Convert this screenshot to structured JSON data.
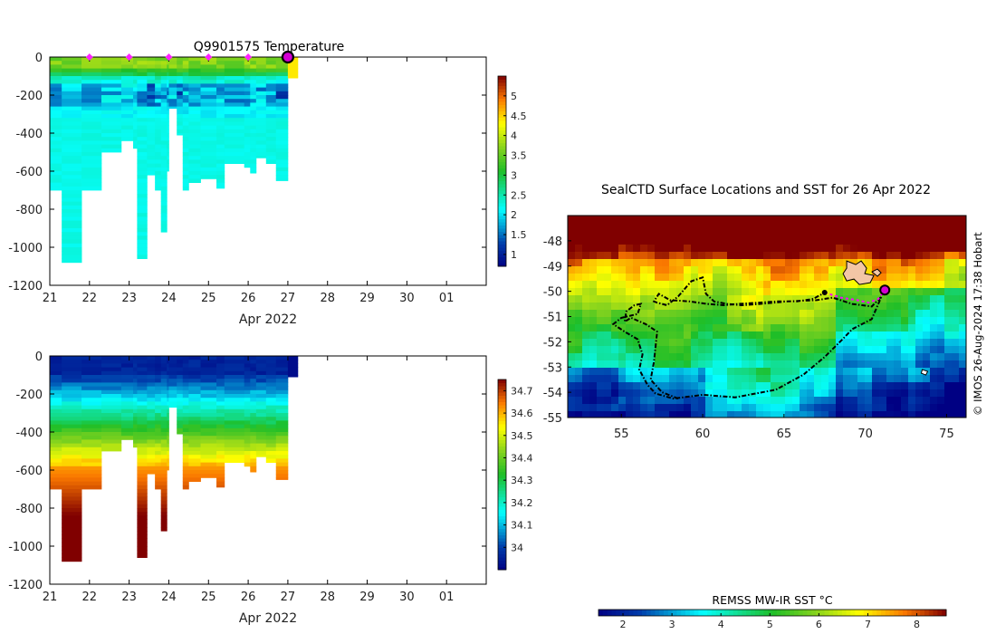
{
  "chart_data": [
    {
      "type": "heatmap",
      "title": "Q9901575  Temperature",
      "xlabel": "Apr 2022",
      "x_tick_labels": [
        "21",
        "22",
        "23",
        "24",
        "25",
        "26",
        "27",
        "28",
        "29",
        "30",
        "01"
      ],
      "xlim": [
        21,
        32
      ],
      "ylim": [
        -1200,
        0
      ],
      "y_tick_labels": [
        "0",
        "-200",
        "-400",
        "-600",
        "-800",
        "-1000",
        "-1200"
      ],
      "colorbar": {
        "min": 0.7,
        "max": 5.5,
        "tick_labels": [
          "1",
          "1.5",
          "2",
          "2.5",
          "3",
          "3.5",
          "4",
          "4.5",
          "5"
        ],
        "tick_values": [
          1,
          1.5,
          2,
          2.5,
          3,
          3.5,
          4,
          4.5,
          5
        ]
      },
      "surfacing_markers_x": [
        22,
        23,
        24,
        25,
        26
      ],
      "current_position_x": 27,
      "profiles": [
        {
          "x_start": 21.0,
          "x_end": 21.3,
          "bottom_depth": 700
        },
        {
          "x_start": 21.3,
          "x_end": 21.8,
          "bottom_depth": 1080
        },
        {
          "x_start": 21.8,
          "x_end": 22.3,
          "bottom_depth": 700
        },
        {
          "x_start": 22.3,
          "x_end": 22.8,
          "bottom_depth": 500
        },
        {
          "x_start": 22.8,
          "x_end": 23.1,
          "bottom_depth": 440
        },
        {
          "x_start": 23.1,
          "x_end": 23.2,
          "bottom_depth": 480
        },
        {
          "x_start": 23.2,
          "x_end": 23.45,
          "bottom_depth": 1060
        },
        {
          "x_start": 23.45,
          "x_end": 23.65,
          "bottom_depth": 620
        },
        {
          "x_start": 23.65,
          "x_end": 23.8,
          "bottom_depth": 700
        },
        {
          "x_start": 23.8,
          "x_end": 23.95,
          "bottom_depth": 920
        },
        {
          "x_start": 23.95,
          "x_end": 24.0,
          "bottom_depth": 600
        },
        {
          "x_start": 24.0,
          "x_end": 24.2,
          "bottom_depth": 270
        },
        {
          "x_start": 24.2,
          "x_end": 24.35,
          "bottom_depth": 410
        },
        {
          "x_start": 24.35,
          "x_end": 24.5,
          "bottom_depth": 700
        },
        {
          "x_start": 24.5,
          "x_end": 24.8,
          "bottom_depth": 660
        },
        {
          "x_start": 24.8,
          "x_end": 25.2,
          "bottom_depth": 640
        },
        {
          "x_start": 25.2,
          "x_end": 25.4,
          "bottom_depth": 690
        },
        {
          "x_start": 25.4,
          "x_end": 25.9,
          "bottom_depth": 560
        },
        {
          "x_start": 25.9,
          "x_end": 26.05,
          "bottom_depth": 580
        },
        {
          "x_start": 26.05,
          "x_end": 26.2,
          "bottom_depth": 610
        },
        {
          "x_start": 26.2,
          "x_end": 26.45,
          "bottom_depth": 530
        },
        {
          "x_start": 26.45,
          "x_end": 26.7,
          "bottom_depth": 560
        },
        {
          "x_start": 26.7,
          "x_end": 27.0,
          "bottom_depth": 650
        },
        {
          "x_start": 27.0,
          "x_end": 27.25,
          "bottom_depth": 110
        }
      ]
    },
    {
      "type": "heatmap",
      "title": "",
      "xlabel": "Apr 2022",
      "x_tick_labels": [
        "21",
        "22",
        "23",
        "24",
        "25",
        "26",
        "27",
        "28",
        "29",
        "30",
        "01"
      ],
      "xlim": [
        21,
        32
      ],
      "ylim": [
        -1200,
        0
      ],
      "y_tick_labels": [
        "0",
        "-200",
        "-400",
        "-600",
        "-800",
        "-1000",
        "-1200"
      ],
      "colorbar": {
        "min": 33.9,
        "max": 34.75,
        "tick_labels": [
          "34",
          "34.1",
          "34.2",
          "34.3",
          "34.4",
          "34.5",
          "34.6",
          "34.7"
        ],
        "tick_values": [
          34,
          34.1,
          34.2,
          34.3,
          34.4,
          34.5,
          34.6,
          34.7
        ]
      }
    },
    {
      "type": "heatmap",
      "title": "SealCTD Surface Locations and SST for 26 Apr 2022",
      "xlabel": "",
      "ylabel": "",
      "x_tick_labels": [
        "55",
        "60",
        "65",
        "70",
        "75"
      ],
      "x_tick_values": [
        55,
        60,
        65,
        70,
        75
      ],
      "xlim": [
        51.7,
        76.2
      ],
      "y_tick_labels": [
        "-48",
        "-49",
        "-50",
        "-51",
        "-52",
        "-53",
        "-54",
        "-55"
      ],
      "y_tick_values": [
        -48,
        -49,
        -50,
        -51,
        -52,
        -53,
        -54,
        -55
      ],
      "ylim": [
        -55,
        -47
      ],
      "colorbar": {
        "label": "REMSS MW-IR SST °C",
        "tick_labels": [
          "2",
          "3",
          "4",
          "5",
          "6",
          "7",
          "8"
        ],
        "tick_values": [
          2,
          3,
          4,
          5,
          6,
          7,
          8
        ],
        "min": 1.5,
        "max": 8.6
      },
      "track_lon": [
        58.5,
        57.5,
        56.8,
        57.0,
        57.2,
        56.5,
        55.6,
        55.2,
        55.3,
        55.8,
        56.2,
        56.0,
        55.0,
        54.5,
        55.2,
        56.0,
        56.3,
        56.1,
        56.6,
        57.1,
        58.2,
        60.0,
        62.0,
        64.5,
        66.2,
        67.5,
        68.6,
        69.2,
        70.4,
        71.0,
        70.4,
        69.2,
        68.0,
        67.0,
        65.2,
        63.5,
        62.4,
        61.5,
        60.7,
        60.2,
        60.0,
        59.3,
        58.5,
        57.8,
        57.2,
        57.0,
        57.3,
        58.0,
        59.2,
        60.3,
        61.3,
        62.2,
        63.4,
        64.6,
        65.8,
        66.8,
        67.5
      ],
      "track_lat": [
        -54.25,
        -54.0,
        -53.5,
        -52.8,
        -51.6,
        -51.3,
        -51.05,
        -51.2,
        -50.8,
        -50.55,
        -50.5,
        -50.9,
        -51.05,
        -51.3,
        -51.6,
        -51.9,
        -52.5,
        -53.1,
        -53.7,
        -54.05,
        -54.25,
        -54.1,
        -54.2,
        -53.9,
        -53.3,
        -52.6,
        -51.9,
        -51.5,
        -51.1,
        -50.2,
        -50.6,
        -50.5,
        -50.25,
        -50.35,
        -50.4,
        -50.5,
        -50.55,
        -50.5,
        -50.4,
        -50.1,
        -49.45,
        -49.6,
        -50.2,
        -50.55,
        -50.45,
        -50.4,
        -50.1,
        -50.35,
        -50.4,
        -50.5,
        -50.55,
        -50.5,
        -50.45,
        -50.4,
        -50.4,
        -50.3,
        -50.05
      ],
      "recent_track_lon": [
        67.5,
        68.5,
        69.5,
        70.2,
        70.8,
        71.2
      ],
      "recent_track_lat": [
        -50.05,
        -50.25,
        -50.35,
        -50.45,
        -50.3,
        -49.95
      ],
      "current_position": {
        "lon": 71.2,
        "lat": -49.95
      },
      "daily_position": {
        "lon": 67.5,
        "lat": -50.05
      }
    }
  ],
  "credit": "© IMOS 26-Aug-2024 17:38 Hobart",
  "colors": {
    "axes": "#000000",
    "background": "#ffffff",
    "surfacing_marker": "#ff22ff",
    "current_marker": "#d400d4",
    "track": "#000000",
    "recent_track": "#ff00ff"
  }
}
